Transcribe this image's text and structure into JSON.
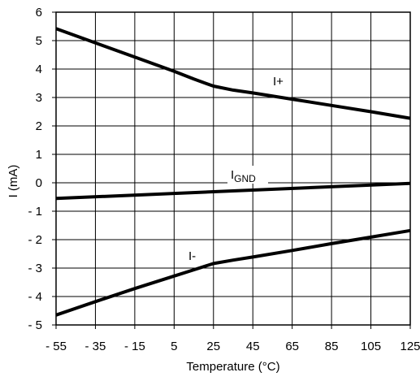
{
  "chart_data": {
    "type": "line",
    "title": "",
    "xlabel": "Temperature (°C)",
    "ylabel": "I (mA)",
    "xlim": [
      -55,
      125
    ],
    "ylim": [
      -5,
      6
    ],
    "grid": true,
    "x_ticks": [
      -55,
      -35,
      -15,
      5,
      25,
      45,
      65,
      85,
      105,
      125
    ],
    "x_tick_labels": [
      "- 55",
      "- 35",
      "- 15",
      "5",
      "25",
      "45",
      "65",
      "85",
      "105",
      "125"
    ],
    "y_ticks": [
      -5,
      -4,
      -3,
      -2,
      -1,
      0,
      1,
      2,
      3,
      4,
      5,
      6
    ],
    "y_tick_labels": [
      "- 5",
      "- 4",
      "- 3",
      "- 2",
      "- 1",
      "0",
      "1",
      "2",
      "3",
      "4",
      "5",
      "6"
    ],
    "series": [
      {
        "name": "I+",
        "x": [
          -55,
          -35,
          -15,
          5,
          15,
          25,
          35,
          45,
          65,
          85,
          105,
          125
        ],
        "y": [
          5.42,
          4.92,
          4.42,
          3.92,
          3.65,
          3.4,
          3.26,
          3.16,
          2.94,
          2.72,
          2.5,
          2.27
        ]
      },
      {
        "name": "IGND",
        "label_main": "I",
        "label_sub": "GND",
        "x": [
          -55,
          125
        ],
        "y": [
          -0.55,
          -0.02
        ]
      },
      {
        "name": "I-",
        "x": [
          -55,
          -35,
          -15,
          5,
          15,
          25,
          35,
          45,
          65,
          85,
          105,
          125
        ],
        "y": [
          -4.65,
          -4.18,
          -3.72,
          -3.28,
          -3.06,
          -2.84,
          -2.72,
          -2.61,
          -2.38,
          -2.14,
          -1.91,
          -1.68
        ]
      }
    ]
  }
}
